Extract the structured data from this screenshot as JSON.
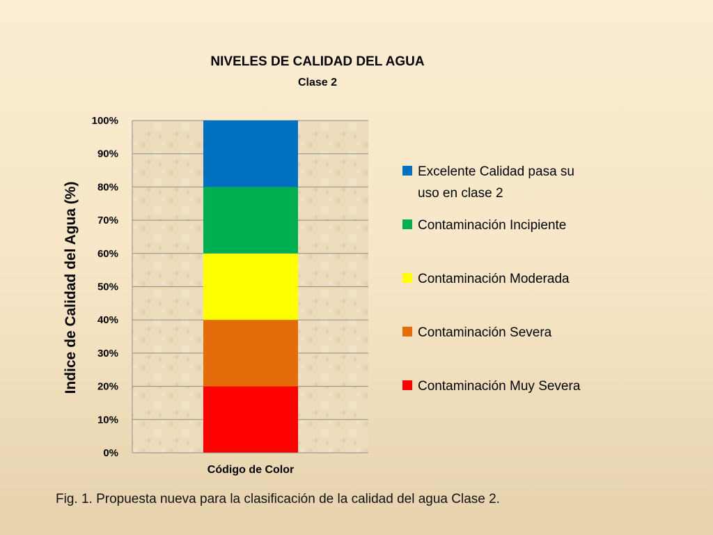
{
  "chart_data": {
    "type": "bar",
    "stacked": true,
    "title": "NIVELES DE CALIDAD DEL AGUA",
    "subtitle": "Clase 2",
    "xlabel": "Código de Color",
    "ylabel": "Indice de Calidad del Agua (%)",
    "ylim": [
      0,
      100
    ],
    "y_ticks": [
      "0%",
      "10%",
      "20%",
      "30%",
      "40%",
      "50%",
      "60%",
      "70%",
      "80%",
      "90%",
      "100%"
    ],
    "grid": true,
    "legend_position": "right",
    "categories": [
      ""
    ],
    "series": [
      {
        "name": "Contaminación Muy Severa",
        "values": [
          20
        ],
        "color": "#ff0000"
      },
      {
        "name": "Contaminación Severa",
        "values": [
          20
        ],
        "color": "#e46c0a"
      },
      {
        "name": "Contaminación Moderada",
        "values": [
          20
        ],
        "color": "#ffff00"
      },
      {
        "name": "Contaminación Incipiente",
        "values": [
          20
        ],
        "color": "#00b050"
      },
      {
        "name": "Excelente Calidad pasa su uso en clase 2",
        "legend_lines": [
          "Excelente Calidad pasa su",
          "uso en clase 2"
        ],
        "values": [
          20
        ],
        "color": "#0070c0"
      }
    ]
  },
  "caption": "Fig. 1. Propuesta nueva para la clasificación de la calidad del agua Clase 2."
}
